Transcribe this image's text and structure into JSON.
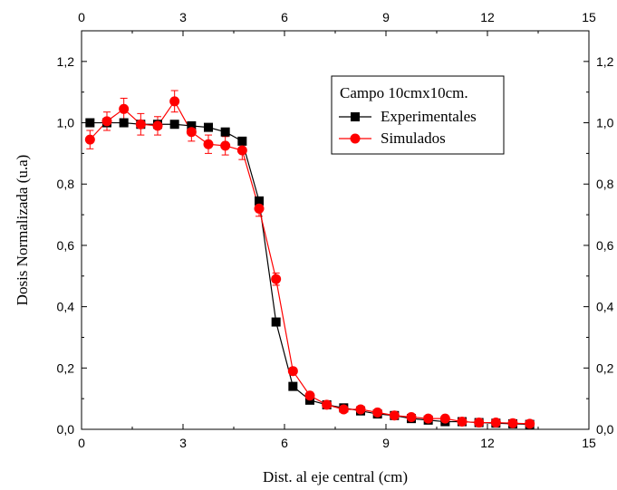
{
  "chart_data": {
    "type": "line",
    "xlabel": "Dist. al eje central (cm)",
    "ylabel": "Dosis Normalizada (u.a)",
    "xlim": [
      0,
      15
    ],
    "ylim": [
      0,
      1.3
    ],
    "x_ticks": [
      "0",
      "3",
      "6",
      "9",
      "12",
      "15"
    ],
    "y_ticks": [
      "0,0",
      "0,2",
      "0,4",
      "0,6",
      "0,8",
      "1,0",
      "1,2"
    ],
    "x_tick_values": [
      0,
      3,
      6,
      9,
      12,
      15
    ],
    "y_tick_values": [
      0,
      0.2,
      0.4,
      0.6,
      0.8,
      1.0,
      1.2
    ],
    "legend": {
      "title": "Campo 10cmx10cm.",
      "placement": "top-right"
    },
    "grid": false,
    "series": [
      {
        "name": "Experimentales",
        "color": "#000000",
        "marker": "square",
        "x": [
          0.25,
          0.75,
          1.25,
          1.75,
          2.25,
          2.75,
          3.25,
          3.75,
          4.25,
          4.75,
          5.25,
          5.75,
          6.25,
          6.75,
          7.25,
          7.75,
          8.25,
          8.75,
          9.25,
          9.75,
          10.25,
          10.75,
          11.25,
          11.75,
          12.25,
          12.75,
          13.25
        ],
        "y": [
          1.0,
          1.0,
          1.0,
          0.995,
          0.995,
          0.995,
          0.99,
          0.985,
          0.97,
          0.94,
          0.745,
          0.35,
          0.14,
          0.095,
          0.08,
          0.07,
          0.06,
          0.05,
          0.045,
          0.035,
          0.03,
          0.025,
          0.025,
          0.022,
          0.02,
          0.018,
          0.016
        ]
      },
      {
        "name": "Simulados",
        "color": "#ff0000",
        "marker": "circle",
        "x": [
          0.25,
          0.75,
          1.25,
          1.75,
          2.25,
          2.75,
          3.25,
          3.75,
          4.25,
          4.75,
          5.25,
          5.75,
          6.25,
          6.75,
          7.25,
          7.75,
          8.25,
          8.75,
          9.25,
          9.75,
          10.25,
          10.75,
          11.25,
          11.75,
          12.25,
          12.75,
          13.25
        ],
        "y": [
          0.945,
          1.005,
          1.045,
          0.995,
          0.99,
          1.07,
          0.97,
          0.93,
          0.925,
          0.91,
          0.72,
          0.49,
          0.19,
          0.11,
          0.08,
          0.065,
          0.065,
          0.055,
          0.045,
          0.04,
          0.035,
          0.035,
          0.025,
          0.022,
          0.022,
          0.02,
          0.018
        ],
        "error": [
          0.03,
          0.03,
          0.035,
          0.035,
          0.03,
          0.035,
          0.03,
          0.03,
          0.03,
          0.03,
          0.025,
          0.02,
          0.01,
          0.01,
          0.005,
          0.005,
          0.005,
          0.005,
          0.005,
          0.005,
          0.005,
          0.005,
          0.005,
          0.005,
          0.005,
          0.005,
          0.005
        ]
      }
    ]
  }
}
